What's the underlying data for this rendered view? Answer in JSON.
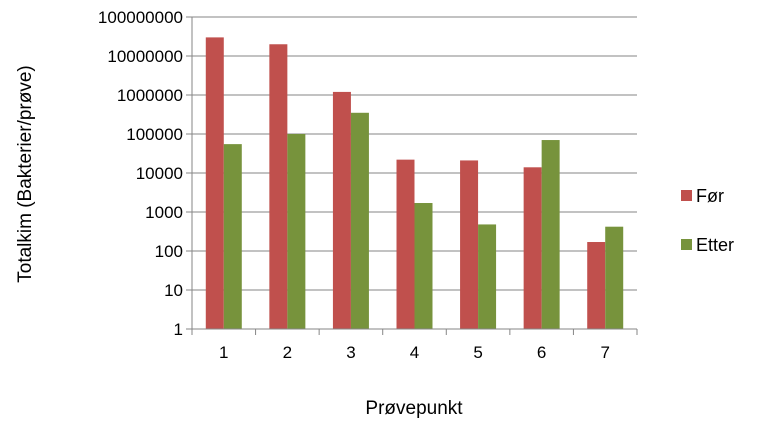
{
  "chart_data": {
    "type": "bar",
    "title": "",
    "xlabel": "Prøvepunkt",
    "ylabel": "Totalkim (Bakterier/prøve)",
    "yscale": "log",
    "ylim": [
      1,
      100000000
    ],
    "yticks": [
      "1",
      "10",
      "100",
      "1000",
      "10000",
      "100000",
      "1000000",
      "10000000",
      "100000000"
    ],
    "categories": [
      "1",
      "2",
      "3",
      "4",
      "5",
      "6",
      "7"
    ],
    "series": [
      {
        "name": "Før",
        "color": "#c0504d",
        "values": [
          30000000,
          20000000,
          1200000,
          22000,
          21000,
          14000,
          170
        ]
      },
      {
        "name": "Etter",
        "color": "#77933c",
        "values": [
          55000,
          100000,
          350000,
          1700,
          480,
          70000,
          420
        ]
      }
    ],
    "grid": true,
    "legend_position": "right"
  }
}
